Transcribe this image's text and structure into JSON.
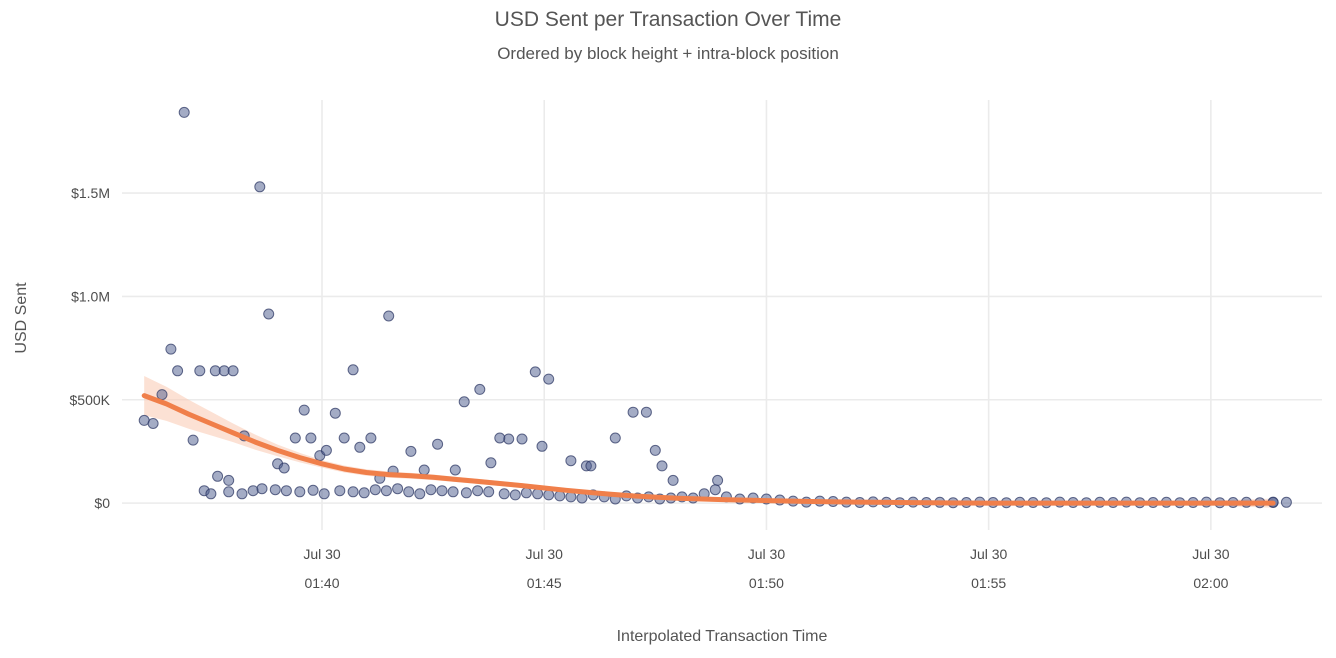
{
  "chart_data": {
    "type": "scatter",
    "title": "USD Sent per Transaction Over Time",
    "subtitle": "Ordered by block height + intra-block position",
    "xlabel": "Interpolated Transaction Time",
    "ylabel": "USD Sent",
    "x_range_minutes": [
      35.5,
      62.5
    ],
    "ylim": [
      -130000,
      1950000
    ],
    "x_ticks": [
      {
        "minute": 40,
        "date": "Jul 30",
        "time": "01:40"
      },
      {
        "minute": 45,
        "date": "Jul 30",
        "time": "01:45"
      },
      {
        "minute": 50,
        "date": "Jul 30",
        "time": "01:50"
      },
      {
        "minute": 55,
        "date": "Jul 30",
        "time": "01:55"
      },
      {
        "minute": 60,
        "date": "Jul 30",
        "time": "02:00"
      }
    ],
    "y_ticks": [
      {
        "value": 0,
        "label": "$0"
      },
      {
        "value": 500000,
        "label": "$500K"
      },
      {
        "value": 1000000,
        "label": "$1.0M"
      },
      {
        "value": 1500000,
        "label": "$1.5M"
      }
    ],
    "grid": true,
    "point_color": "#4a5a8c",
    "trend_color": "#f07f4a",
    "band_color": "#f9c9b0",
    "points": [
      [
        36.0,
        400000
      ],
      [
        36.2,
        385000
      ],
      [
        36.4,
        525000
      ],
      [
        36.6,
        745000
      ],
      [
        36.75,
        640000
      ],
      [
        36.9,
        1890000
      ],
      [
        37.1,
        305000
      ],
      [
        37.25,
        640000
      ],
      [
        37.6,
        640000
      ],
      [
        37.8,
        640000
      ],
      [
        38.0,
        640000
      ],
      [
        38.6,
        1530000
      ],
      [
        38.8,
        915000
      ],
      [
        37.9,
        110000
      ],
      [
        38.25,
        325000
      ],
      [
        39.0,
        190000
      ],
      [
        39.15,
        170000
      ],
      [
        39.4,
        315000
      ],
      [
        39.6,
        450000
      ],
      [
        39.75,
        315000
      ],
      [
        39.95,
        230000
      ],
      [
        40.1,
        255000
      ],
      [
        40.3,
        435000
      ],
      [
        40.5,
        315000
      ],
      [
        40.85,
        270000
      ],
      [
        41.1,
        315000
      ],
      [
        40.7,
        645000
      ],
      [
        41.5,
        905000
      ],
      [
        41.3,
        120000
      ],
      [
        41.6,
        155000
      ],
      [
        42.0,
        250000
      ],
      [
        42.3,
        160000
      ],
      [
        42.6,
        285000
      ],
      [
        43.0,
        160000
      ],
      [
        43.2,
        490000
      ],
      [
        43.55,
        550000
      ],
      [
        43.8,
        195000
      ],
      [
        44.2,
        310000
      ],
      [
        44.5,
        310000
      ],
      [
        44.0,
        315000
      ],
      [
        44.8,
        635000
      ],
      [
        45.1,
        600000
      ],
      [
        44.95,
        275000
      ],
      [
        45.6,
        205000
      ],
      [
        45.95,
        180000
      ],
      [
        46.05,
        180000
      ],
      [
        46.6,
        315000
      ],
      [
        47.0,
        440000
      ],
      [
        47.3,
        440000
      ],
      [
        47.5,
        255000
      ],
      [
        47.65,
        180000
      ],
      [
        47.9,
        110000
      ],
      [
        48.9,
        110000
      ],
      [
        37.35,
        60000
      ],
      [
        37.5,
        45000
      ],
      [
        37.65,
        130000
      ],
      [
        37.9,
        55000
      ],
      [
        38.2,
        45000
      ],
      [
        38.45,
        60000
      ],
      [
        38.65,
        70000
      ],
      [
        38.95,
        65000
      ],
      [
        39.2,
        60000
      ],
      [
        39.5,
        55000
      ],
      [
        39.8,
        62000
      ],
      [
        40.05,
        45000
      ],
      [
        40.4,
        60000
      ],
      [
        40.7,
        55000
      ],
      [
        40.95,
        50000
      ],
      [
        41.2,
        65000
      ],
      [
        41.45,
        60000
      ],
      [
        41.7,
        70000
      ],
      [
        41.95,
        55000
      ],
      [
        42.2,
        45000
      ],
      [
        42.45,
        65000
      ],
      [
        42.7,
        60000
      ],
      [
        42.95,
        55000
      ],
      [
        43.25,
        50000
      ],
      [
        43.5,
        60000
      ],
      [
        43.75,
        55000
      ],
      [
        44.1,
        45000
      ],
      [
        44.35,
        40000
      ],
      [
        44.6,
        50000
      ],
      [
        44.85,
        45000
      ],
      [
        45.1,
        40000
      ],
      [
        45.35,
        35000
      ],
      [
        45.6,
        30000
      ],
      [
        45.85,
        25000
      ],
      [
        46.1,
        40000
      ],
      [
        46.35,
        30000
      ],
      [
        46.6,
        20000
      ],
      [
        46.85,
        35000
      ],
      [
        47.1,
        25000
      ],
      [
        47.35,
        30000
      ],
      [
        47.6,
        20000
      ],
      [
        47.85,
        25000
      ],
      [
        48.1,
        30000
      ],
      [
        48.35,
        25000
      ],
      [
        48.6,
        45000
      ],
      [
        48.85,
        65000
      ],
      [
        49.1,
        30000
      ],
      [
        49.4,
        20000
      ],
      [
        49.7,
        25000
      ],
      [
        50.0,
        20000
      ],
      [
        50.3,
        15000
      ],
      [
        50.6,
        10000
      ],
      [
        50.9,
        5000
      ],
      [
        51.2,
        10000
      ],
      [
        51.5,
        8000
      ],
      [
        51.8,
        5000
      ],
      [
        52.1,
        3000
      ],
      [
        52.4,
        6000
      ],
      [
        52.7,
        4000
      ],
      [
        53.0,
        2000
      ],
      [
        53.3,
        5000
      ],
      [
        53.6,
        3000
      ],
      [
        53.9,
        4000
      ],
      [
        54.2,
        2000
      ],
      [
        54.5,
        3000
      ],
      [
        54.8,
        5000
      ],
      [
        55.1,
        3000
      ],
      [
        55.4,
        2000
      ],
      [
        55.7,
        4000
      ],
      [
        56.0,
        3000
      ],
      [
        56.3,
        2000
      ],
      [
        56.6,
        5000
      ],
      [
        56.9,
        3000
      ],
      [
        57.2,
        2000
      ],
      [
        57.5,
        4000
      ],
      [
        57.8,
        3000
      ],
      [
        58.1,
        5000
      ],
      [
        58.4,
        2000
      ],
      [
        58.7,
        3000
      ],
      [
        59.0,
        4000
      ],
      [
        59.3,
        2000
      ],
      [
        59.6,
        3000
      ],
      [
        59.9,
        5000
      ],
      [
        60.2,
        2000
      ],
      [
        60.5,
        3000
      ],
      [
        60.8,
        4000
      ],
      [
        61.1,
        2000
      ],
      [
        61.4,
        3000
      ],
      [
        61.7,
        4000
      ],
      [
        61.4,
        5000
      ]
    ],
    "trend": [
      [
        36.0,
        520000
      ],
      [
        36.5,
        480000
      ],
      [
        37.0,
        430000
      ],
      [
        37.5,
        385000
      ],
      [
        38.0,
        340000
      ],
      [
        38.5,
        295000
      ],
      [
        39.0,
        255000
      ],
      [
        39.5,
        220000
      ],
      [
        40.0,
        190000
      ],
      [
        40.5,
        165000
      ],
      [
        41.0,
        148000
      ],
      [
        41.5,
        138000
      ],
      [
        42.0,
        132000
      ],
      [
        42.5,
        125000
      ],
      [
        43.0,
        115000
      ],
      [
        43.5,
        105000
      ],
      [
        44.0,
        95000
      ],
      [
        44.5,
        85000
      ],
      [
        45.0,
        73000
      ],
      [
        45.5,
        62000
      ],
      [
        46.0,
        52000
      ],
      [
        46.5,
        43000
      ],
      [
        47.0,
        35000
      ],
      [
        47.5,
        29000
      ],
      [
        48.0,
        24000
      ],
      [
        49.0,
        17000
      ],
      [
        50.0,
        12000
      ],
      [
        51.0,
        8000
      ],
      [
        52.0,
        5000
      ],
      [
        53.0,
        3000
      ],
      [
        54.0,
        1000
      ],
      [
        55.0,
        0
      ],
      [
        56.0,
        0
      ],
      [
        57.0,
        0
      ],
      [
        58.0,
        0
      ],
      [
        59.0,
        0
      ],
      [
        60.0,
        0
      ],
      [
        61.0,
        0
      ],
      [
        61.4,
        0
      ]
    ],
    "band_halfwidth": [
      [
        36.0,
        95000
      ],
      [
        37.0,
        70000
      ],
      [
        38.0,
        45000
      ],
      [
        39.0,
        28000
      ],
      [
        40.0,
        18000
      ],
      [
        42.0,
        14000
      ],
      [
        44.0,
        12000
      ],
      [
        46.0,
        10000
      ],
      [
        48.0,
        8000
      ],
      [
        50.0,
        6000
      ],
      [
        52.0,
        5000
      ],
      [
        54.0,
        5000
      ],
      [
        56.0,
        5000
      ],
      [
        58.0,
        6000
      ],
      [
        60.0,
        12000
      ],
      [
        61.4,
        22000
      ]
    ]
  }
}
